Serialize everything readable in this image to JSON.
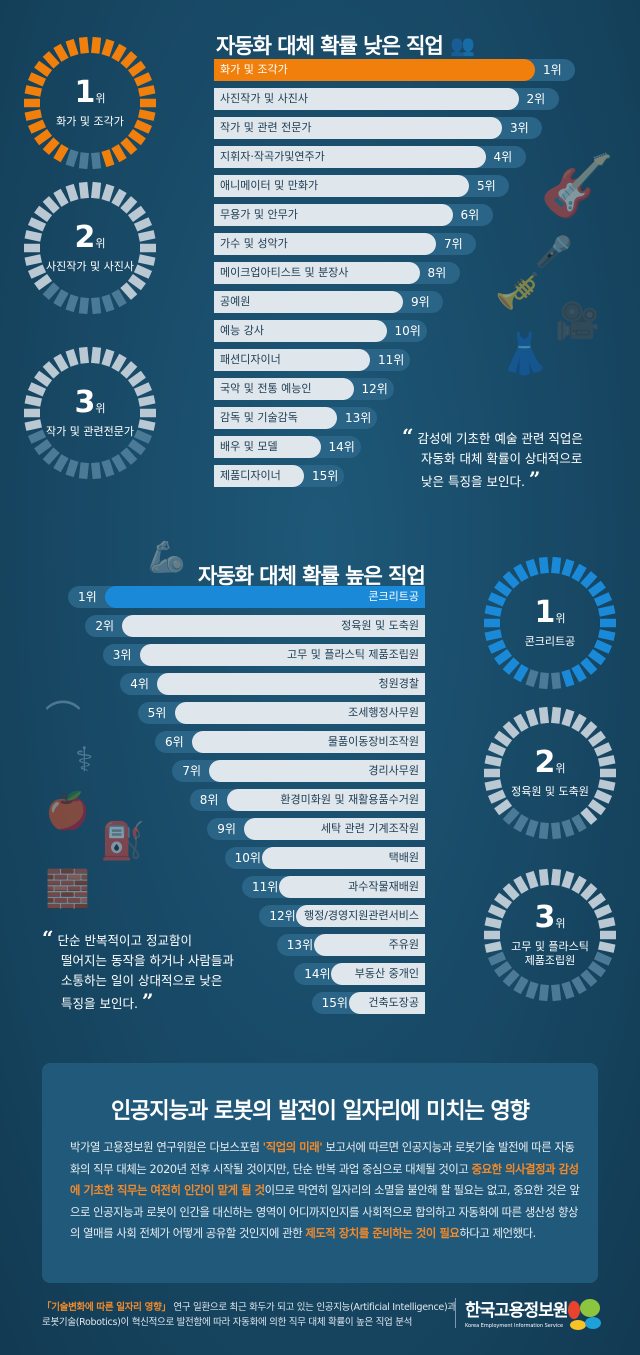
{
  "low": {
    "title": "자동화 대체 확률 낮은 직업",
    "items": [
      "화가 및 조각가",
      "사진작가 및 사진사",
      "작가 및 관련 전문가",
      "지휘자·작곡가및연주가",
      "애니메이터 및 만화가",
      "무용가 및 안무가",
      "가수 및 성악가",
      "메이크업아티스트 및 분장사",
      "공예원",
      "예능 강사",
      "패션디자이너",
      "국악 및 전통 예능인",
      "감독 및 기술감독",
      "배우 및 모델",
      "제품디자이너"
    ],
    "ranks": [
      "1위",
      "2위",
      "3위",
      "4위",
      "5위",
      "6위",
      "7위",
      "8위",
      "9위",
      "10위",
      "11위",
      "12위",
      "13위",
      "14위",
      "15위"
    ],
    "highlight_color": "#f07f0c",
    "circles": [
      {
        "num": "1",
        "unit": "위",
        "label": "화가 및 조각가",
        "color": "#f07f0c",
        "fill": 0.9
      },
      {
        "num": "2",
        "unit": "위",
        "label": "사진작가 및 사진사",
        "color": "#b9c8d3",
        "fill": 0.75
      },
      {
        "num": "3",
        "unit": "위",
        "label": "작가 및 관련전문가",
        "color": "#b9c8d3",
        "fill": 0.6
      }
    ],
    "quote": [
      "감성에 기초한 예술 관련 직업은",
      "자동화 대체 확률이 상대적으로",
      "낮은 특징을 보인다."
    ]
  },
  "high": {
    "title": "자동화 대체 확률 높은 직업",
    "items": [
      "콘크리트공",
      "정육원 및 도축원",
      "고무 및 플라스틱 제품조립원",
      "청원경찰",
      "조세행정사무원",
      "물품이동장비조작원",
      "경리사무원",
      "환경미화원 및 재활용품수거원",
      "세탁 관련 기계조작원",
      "택배원",
      "과수작물재배원",
      "행정/경영지원관련서비스",
      "주유원",
      "부동산 중개인",
      "건축도장공"
    ],
    "ranks": [
      "1위",
      "2위",
      "3위",
      "4위",
      "5위",
      "6위",
      "7위",
      "8위",
      "9위",
      "10위",
      "11위",
      "12위",
      "13위",
      "14위",
      "15위"
    ],
    "highlight_color": "#1a8ad8",
    "circles": [
      {
        "num": "1",
        "unit": "위",
        "label": "콘크리트공",
        "color": "#1a8ad8",
        "fill": 0.9
      },
      {
        "num": "2",
        "unit": "위",
        "label": "정육원 및 도축원",
        "color": "#b9c8d3",
        "fill": 0.75
      },
      {
        "num": "3",
        "unit": "위",
        "label": "고무 및 플라스틱\n제품조립원",
        "color": "#b9c8d3",
        "fill": 0.6
      }
    ],
    "quote": [
      "단순 반복적이고 정교함이",
      "떨어지는 동작을 하거나 사람들과",
      "소통하는 일이 상대적으로 낮은",
      "특징을 보인다."
    ]
  },
  "summary": {
    "title": "인공지능과 로봇의 발전이 일자리에 미치는 영향",
    "p1": "박가열 고용정보원 연구위원은  다보스포럼 ",
    "h1": "'직업의 미래'",
    "p2": " 보고서에 따르면 인공지능과 로봇기술 발전에 따른 자동화의 직무 대체는 2020년 전후 시작될 것이지만, 단순 반복 과업 중심으로 대체될 것이고 ",
    "h2": "중요한 의사결정과 감성에 기초한 직무는 여전히 인간이 맡게 될 것",
    "p3": "이므로 막연히 일자리의 소멸을 불안해 할 필요는 없고, 중요한 것은 앞으로 인공지능과 로봇이 인간을 대신하는 영역이 어디까지인지를 사회적으로 합의하고 자동화에 따른 생산성 향상의 열매를 사회 전체가 어떻게 공유할 것인지에 관한 ",
    "h3": "제도적 장치를 준비하는 것이 필요",
    "p4": "하다고 제언했다."
  },
  "footer": {
    "hl": "「기술변화에 따른 일자리 영향」",
    "text1": " 연구 일환으로 최근 화두가 되고 있는 인공지능(Artificial Intelligence)과",
    "text2": "로봇기술(Robotics)이 혁신적으로 발전함에 따라 자동화에 의한 직무 대체 확률이 높은 직업 분석",
    "logo_kr": "한국고용정보원",
    "logo_en": "Korea Employment Information Service"
  },
  "icons": [
    "people-icon",
    "guitar-icon",
    "microphone-icon",
    "tuba-icon",
    "film-camera-icon",
    "mannequin-icon",
    "robot-arm-icon",
    "hanger-icon",
    "caduceus-icon",
    "apple-icon",
    "fuel-pump-icon",
    "brick-wall-icon"
  ]
}
